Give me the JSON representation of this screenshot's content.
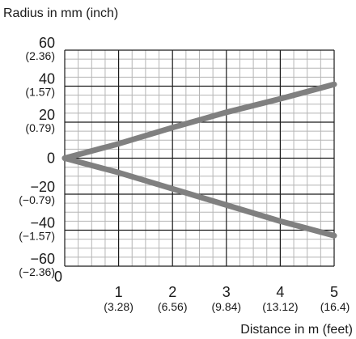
{
  "chart_data": {
    "type": "line",
    "title": "",
    "ylabel": "Radius in mm (inch)",
    "xlabel": "Distance in m (feet)",
    "xlim": [
      0,
      5
    ],
    "ylim": [
      -60,
      60
    ],
    "grid": true,
    "x_ticks": [
      {
        "value": 0,
        "label": "0",
        "sub": ""
      },
      {
        "value": 1,
        "label": "1",
        "sub": "(3.28)"
      },
      {
        "value": 2,
        "label": "2",
        "sub": "(6.56)"
      },
      {
        "value": 3,
        "label": "3",
        "sub": "(9.84)"
      },
      {
        "value": 4,
        "label": "4",
        "sub": "(13.12)"
      },
      {
        "value": 5,
        "label": "5",
        "sub": "(16.4)"
      }
    ],
    "y_ticks": [
      {
        "value": 60,
        "label": "60",
        "sub": "(2.36)"
      },
      {
        "value": 40,
        "label": "40",
        "sub": "(1.57)"
      },
      {
        "value": 20,
        "label": "20",
        "sub": "(0.79)"
      },
      {
        "value": 0,
        "label": "0",
        "sub": ""
      },
      {
        "value": -20,
        "label": "−20",
        "sub": "(−0.79)"
      },
      {
        "value": -40,
        "label": "−40",
        "sub": "(−1.57)"
      },
      {
        "value": -60,
        "label": "−60",
        "sub": "(−2.36)"
      }
    ],
    "series": [
      {
        "x": [
          0,
          1,
          2,
          3,
          4,
          5
        ],
        "y": [
          0,
          8,
          17,
          25.5,
          33,
          41
        ],
        "color": "#808080"
      },
      {
        "x": [
          0,
          1,
          2,
          3,
          4,
          5
        ],
        "y": [
          0,
          -8,
          -17,
          -26,
          -35,
          -43
        ],
        "color": "#808080"
      }
    ]
  }
}
